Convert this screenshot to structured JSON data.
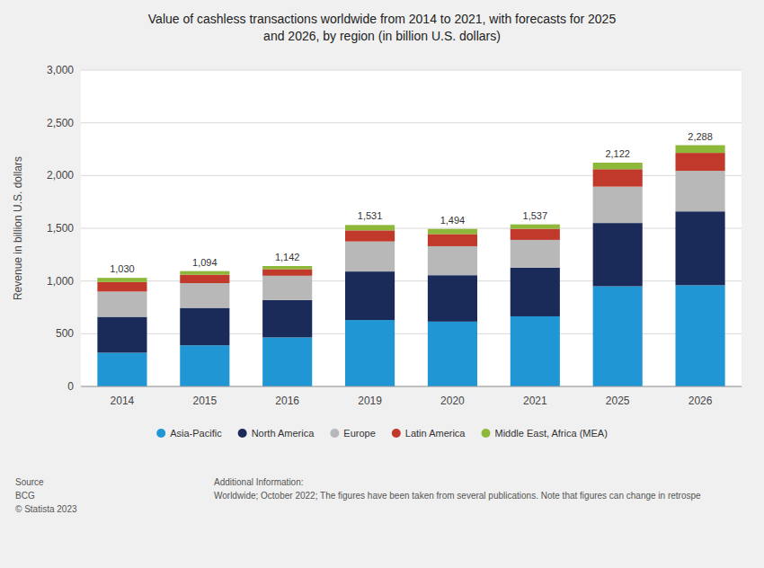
{
  "chart_data": {
    "type": "bar",
    "stacked": true,
    "title": "Value of cashless transactions worldwide from 2014 to 2021, with forecasts for 2025\nand 2026, by region (in billion U.S. dollars)",
    "y_label": "Revenue in billion U.S. dollars",
    "categories": [
      "2014",
      "2015",
      "2016",
      "2019",
      "2020",
      "2021",
      "2025",
      "2026"
    ],
    "series": [
      {
        "name": "Asia-Pacific",
        "color": "#2196d5",
        "values": [
          320,
          390,
          465,
          630,
          615,
          665,
          950,
          960
        ]
      },
      {
        "name": "North America",
        "color": "#1a2b5a",
        "values": [
          340,
          355,
          355,
          460,
          440,
          460,
          600,
          700
        ]
      },
      {
        "name": "Europe",
        "color": "#b8b8b8",
        "values": [
          240,
          235,
          230,
          285,
          275,
          265,
          345,
          385
        ]
      },
      {
        "name": "Latin America",
        "color": "#c0392b",
        "values": [
          90,
          80,
          62,
          105,
          115,
          105,
          165,
          170
        ]
      },
      {
        "name": "Middle East, Africa (MEA)",
        "color": "#8db83a",
        "values": [
          40,
          34,
          30,
          51,
          49,
          42,
          62,
          73
        ]
      }
    ],
    "totals": [
      1030,
      1094,
      1142,
      1531,
      1494,
      1537,
      2122,
      2288
    ],
    "total_labels": [
      "1,030",
      "1,094",
      "1,142",
      "1,531",
      "1,494",
      "1,537",
      "2,122",
      "2,288"
    ],
    "ylim": [
      0,
      3000
    ],
    "yticks": [
      0,
      500,
      {
        "value": 1000,
        "label": "1,000"
      },
      {
        "value": 1500,
        "label": "1,500"
      },
      {
        "value": 2000,
        "label": "2,000"
      },
      {
        "value": 2500,
        "label": "2,500"
      },
      {
        "value": 3000,
        "label": "3,000"
      }
    ],
    "grid": true,
    "legend": "bottom",
    "annotations": [
      "Source\nBCG\n© Statista 2023",
      "Additional Information:\nWorldwide; October 2022; The figures have been taken from several publications. Note that figures can change in retrospe"
    ]
  }
}
